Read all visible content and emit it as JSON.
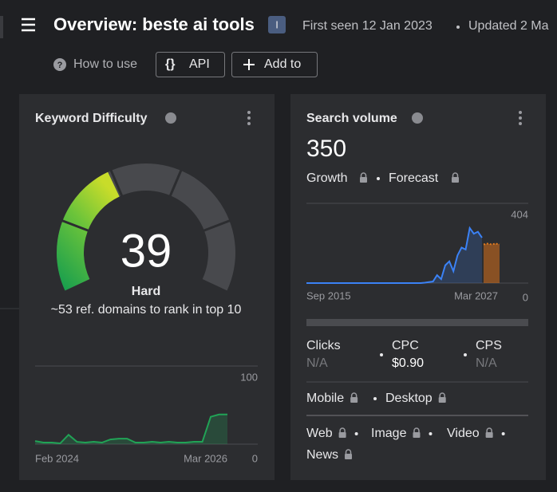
{
  "header": {
    "title": "Overview: beste ai tools",
    "badge": "I",
    "first_seen": "First seen 12 Jan 2023",
    "updated": "Updated 2 Ma"
  },
  "toolbar": {
    "how_to_use": "How to use",
    "api": "API",
    "add_to": "Add to"
  },
  "kd_card": {
    "title": "Keyword Difficulty",
    "value": 39,
    "label": "Hard",
    "note": "~53 ref. domains to rank in top 10",
    "trend": {
      "x_start": "Feb 2024",
      "x_end": "Mar 2026",
      "ylim": [
        0,
        100
      ],
      "yticks": [
        0,
        100
      ],
      "color": "#21a356",
      "values": [
        4,
        2,
        2,
        1,
        12,
        3,
        2,
        3,
        2,
        6,
        7,
        7,
        2,
        2,
        3,
        2,
        3,
        2,
        2,
        3,
        3,
        35,
        38,
        38
      ]
    }
  },
  "sv_card": {
    "title": "Search volume",
    "value": 350,
    "growth": "Growth",
    "forecast": "Forecast",
    "trend": {
      "x_start": "Sep 2015",
      "x_end": "Mar 2027",
      "ylim": [
        0,
        404
      ],
      "yticks": [
        0,
        404
      ],
      "color": "#3b82f6",
      "forecast_color": "#c8691c",
      "values": [
        0,
        0,
        0,
        0,
        0,
        0,
        0,
        0,
        0,
        0,
        0,
        0,
        0,
        0,
        0,
        0,
        0,
        0,
        0,
        0,
        0,
        0,
        0,
        0,
        0,
        0,
        0,
        0,
        0,
        2,
        5,
        8,
        40,
        20,
        90,
        110,
        60,
        140,
        180,
        170,
        279,
        250,
        260,
        230
      ],
      "forecast_values": [
        196,
        200,
        196,
        200,
        196
      ]
    },
    "metrics": [
      {
        "label": "Clicks",
        "value": "N/A"
      },
      {
        "label": "CPC",
        "value": "$0.90"
      },
      {
        "label": "CPS",
        "value": "N/A"
      }
    ],
    "devices": [
      "Mobile",
      "Desktop"
    ],
    "serp": [
      "Web",
      "Image",
      "Video",
      "News"
    ]
  }
}
